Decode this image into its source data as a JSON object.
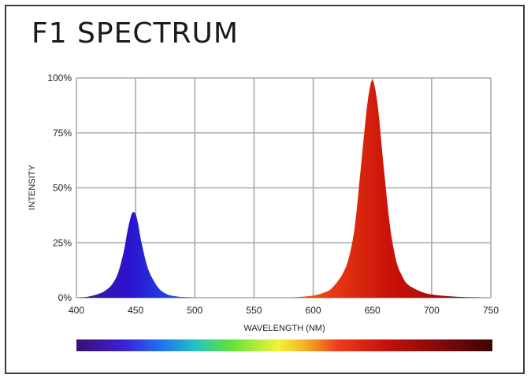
{
  "chart_data": {
    "type": "area",
    "title": "F1 SPECTRUM",
    "xlabel": "WAVELENGTH (NM)",
    "ylabel": "INTENSITY",
    "xlim": [
      400,
      750
    ],
    "ylim": [
      0,
      100
    ],
    "x_ticks": [
      "400",
      "450",
      "500",
      "550",
      "600",
      "650",
      "700",
      "750"
    ],
    "y_ticks": [
      "0%",
      "25%",
      "50%",
      "75%",
      "100%"
    ],
    "grid": true,
    "series": [
      {
        "color": "#2a10c8",
        "x": [
          400,
          410,
          420,
          425,
          430,
          435,
          440,
          443,
          446,
          448,
          450,
          452,
          455,
          460,
          465,
          470,
          475,
          480,
          490,
          500
        ],
        "y": [
          0,
          0.5,
          2,
          3.5,
          6,
          11,
          21,
          30,
          37,
          39,
          38,
          34,
          25,
          14,
          8,
          4,
          2,
          1,
          0.3,
          0
        ]
      },
      {
        "color": "#c41208",
        "x": [
          580,
          600,
          610,
          615,
          620,
          625,
          630,
          635,
          640,
          645,
          648,
          650,
          652,
          655,
          660,
          665,
          670,
          675,
          680,
          690,
          700,
          720,
          740,
          750
        ],
        "y": [
          0,
          1,
          2.5,
          4,
          7,
          11,
          18,
          32,
          58,
          85,
          96,
          99,
          96,
          85,
          57,
          32,
          17,
          10,
          6,
          3,
          1.5,
          0.5,
          0.1,
          0
        ]
      }
    ],
    "colorbar": {
      "range": [
        400,
        750
      ],
      "stops": [
        {
          "wavelength": 400,
          "color": "#3a0f6e"
        },
        {
          "wavelength": 440,
          "color": "#3d1fd6"
        },
        {
          "wavelength": 470,
          "color": "#1f6ff2"
        },
        {
          "wavelength": 500,
          "color": "#22c4c0"
        },
        {
          "wavelength": 530,
          "color": "#5fe33a"
        },
        {
          "wavelength": 570,
          "color": "#f2f23a"
        },
        {
          "wavelength": 595,
          "color": "#f5a623"
        },
        {
          "wavelength": 620,
          "color": "#ef3a1d"
        },
        {
          "wavelength": 660,
          "color": "#c8100c"
        },
        {
          "wavelength": 700,
          "color": "#8c0a0a"
        },
        {
          "wavelength": 750,
          "color": "#3a0505"
        }
      ]
    }
  }
}
